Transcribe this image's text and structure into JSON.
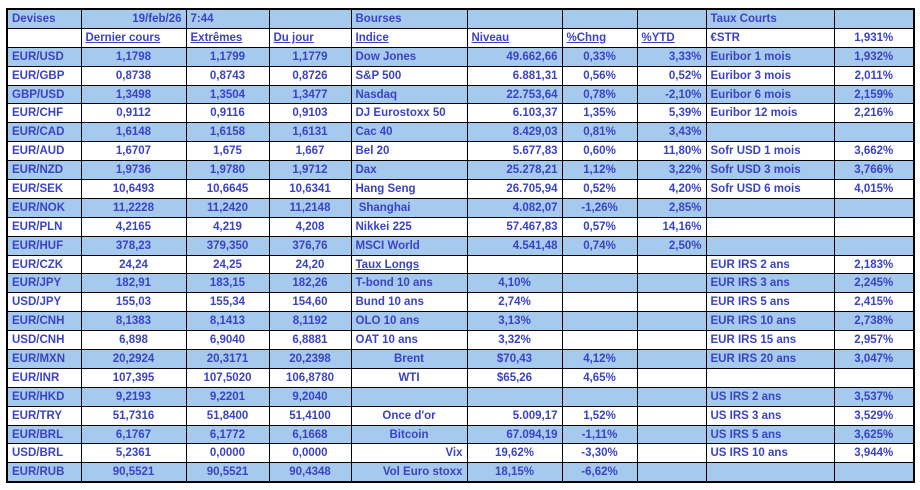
{
  "meta": {
    "date": "19/feb/26",
    "time": "7:44"
  },
  "colors": {
    "row_highlight": "#a6caee",
    "text": "#3b43c4",
    "border": "#000000",
    "background": "#ffffff"
  },
  "currencies": {
    "title": "Devises",
    "headers": [
      "Dernier cours",
      "Extrêmes",
      "Du jour"
    ],
    "rows": [
      [
        "EUR/USD",
        "1,1798",
        "1,1799",
        "1,1779"
      ],
      [
        "EUR/GBP",
        "0,8738",
        "0,8743",
        "0,8726"
      ],
      [
        "GBP/USD",
        "1,3498",
        "1,3504",
        "1,3477"
      ],
      [
        "EUR/CHF",
        "0,9112",
        "0,9116",
        "0,9103"
      ],
      [
        "EUR/CAD",
        "1,6148",
        "1,6158",
        "1,6131"
      ],
      [
        "EUR/AUD",
        "1,6707",
        "1,675",
        "1,667"
      ],
      [
        "EUR/NZD",
        "1,9736",
        "1,9780",
        "1,9712"
      ],
      [
        "EUR/SEK",
        "10,6493",
        "10,6645",
        "10,6341"
      ],
      [
        "EUR/NOK",
        "11,2228",
        "11,2420",
        "11,2148"
      ],
      [
        "EUR/PLN",
        "4,2165",
        "4,219",
        "4,208"
      ],
      [
        "EUR/HUF",
        "378,23",
        "379,350",
        "376,76"
      ],
      [
        "EUR/CZK",
        "24,24",
        "24,25",
        "24,20"
      ],
      [
        "EUR/JPY",
        "182,91",
        "183,15",
        "182,26"
      ],
      [
        "USD/JPY",
        "155,03",
        "155,34",
        "154,60"
      ],
      [
        "EUR/CNH",
        "8,1383",
        "8,1413",
        "8,1192"
      ],
      [
        "USD/CNH",
        "6,898",
        "6,9040",
        "6,8881"
      ],
      [
        "EUR/MXN",
        "20,2924",
        "20,3171",
        "20,2398"
      ],
      [
        "EUR/INR",
        "107,395",
        "107,5020",
        "106,8780"
      ],
      [
        "EUR/HKD",
        "9,2193",
        "9,2201",
        "9,2040"
      ],
      [
        "EUR/TRY",
        "51,7316",
        "51,8400",
        "51,4100"
      ],
      [
        "EUR/BRL",
        "6,1767",
        "6,1772",
        "6,1668"
      ],
      [
        "USD/BRL",
        "5,2361",
        "0,0000",
        "0,0000"
      ],
      [
        "EUR/RUB",
        "90,5521",
        "90,5521",
        "90,4348"
      ]
    ]
  },
  "markets": {
    "title": "Bourses",
    "headers": [
      "Indice",
      "Niveau",
      "%Chng",
      "%YTD"
    ],
    "rows": [
      {
        "label": "Dow Jones",
        "niveau": "49.662,66",
        "chng": "0,33%",
        "ytd": "3,33%"
      },
      {
        "label": "S&P 500",
        "niveau": "6.881,31",
        "chng": "0,56%",
        "ytd": "0,52%"
      },
      {
        "label": "Nasdaq",
        "niveau": "22.753,64",
        "chng": "0,78%",
        "ytd": "-2,10%"
      },
      {
        "label": "DJ Eurostoxx 50",
        "niveau": "6.103,37",
        "chng": "1,35%",
        "ytd": "5,39%"
      },
      {
        "label": "Cac 40",
        "niveau": "8.429,03",
        "chng": "0,81%",
        "ytd": "3,43%"
      },
      {
        "label": "Bel 20",
        "niveau": "5.677,83",
        "chng": "0,60%",
        "ytd": "11,80%"
      },
      {
        "label": "Dax",
        "niveau": "25.278,21",
        "chng": "1,12%",
        "ytd": "3,22%"
      },
      {
        "label": "Hang Seng",
        "niveau": "26.705,94",
        "chng": "0,52%",
        "ytd": "4,20%"
      },
      {
        "label": " Shanghai",
        "niveau": "4.082,07",
        "chng": "-1,26%",
        "ytd": "2,85%"
      },
      {
        "label": "Nikkei 225",
        "niveau": "57.467,83",
        "chng": "0,57%",
        "ytd": "14,16%"
      },
      {
        "label": "MSCI World",
        "niveau": "4.541,48",
        "chng": "0,74%",
        "ytd": "2,50%"
      },
      {
        "type": "header",
        "label": "Taux Longs"
      },
      {
        "label": "T-bond 10 ans",
        "niveau": "4,10%",
        "value_align": "c"
      },
      {
        "label": "Bund 10 ans",
        "niveau": "2,74%",
        "value_align": "c"
      },
      {
        "label": "OLO 10 ans",
        "niveau": "3,13%",
        "value_align": "c"
      },
      {
        "label": "OAT 10 ans",
        "niveau": "3,32%",
        "value_align": "c"
      },
      {
        "label": "Brent",
        "label_align": "c",
        "niveau": "$70,43",
        "value_align": "c",
        "chng": "4,12%"
      },
      {
        "label": "WTI",
        "label_align": "c",
        "niveau": "$65,26",
        "value_align": "c",
        "chng": "4,65%"
      },
      {
        "type": "blank"
      },
      {
        "label": "Once d'or",
        "label_align": "c",
        "niveau": "5.009,17",
        "chng": "1,52%"
      },
      {
        "label": "Bitcoin",
        "label_align": "c",
        "niveau": "67.094,19",
        "chng": "-1,11%"
      },
      {
        "label": "Vix",
        "label_align": "r",
        "niveau": "19,62%",
        "value_align": "c",
        "chng": "-3,30%"
      },
      {
        "label": "Vol Euro stoxx",
        "label_align": "r",
        "niveau": "18,15%",
        "value_align": "c",
        "chng": "-6,62%"
      }
    ]
  },
  "rates": {
    "title": "Taux Courts",
    "rows": [
      [
        "€STR",
        "1,931%"
      ],
      [
        "Euribor 1 mois",
        "1,932%"
      ],
      [
        "Euribor 3 mois",
        "2,011%"
      ],
      [
        "Euribor 6 mois",
        "2,159%"
      ],
      [
        "Euribor 12 mois",
        "2,216%"
      ],
      null,
      [
        "Sofr USD 1 mois",
        "3,662%"
      ],
      [
        "Sofr USD 3 mois",
        "3,766%"
      ],
      [
        "Sofr USD 6 mois",
        "4,015%"
      ],
      null,
      null,
      null,
      [
        "EUR IRS 2 ans",
        "2,183%"
      ],
      [
        "EUR IRS 3 ans",
        "2,245%"
      ],
      [
        "EUR IRS 5 ans",
        "2,415%"
      ],
      [
        "EUR IRS 10 ans",
        "2,738%"
      ],
      [
        "EUR IRS 15 ans",
        "2,957%"
      ],
      [
        "EUR IRS 20 ans",
        "3,047%"
      ],
      null,
      [
        "US IRS 2 ans",
        "3,537%"
      ],
      [
        "US IRS 3 ans",
        "3,529%"
      ],
      [
        "US IRS 5 ans",
        "3,625%"
      ],
      [
        "US IRS 10 ans",
        "3,944%"
      ],
      null
    ]
  }
}
